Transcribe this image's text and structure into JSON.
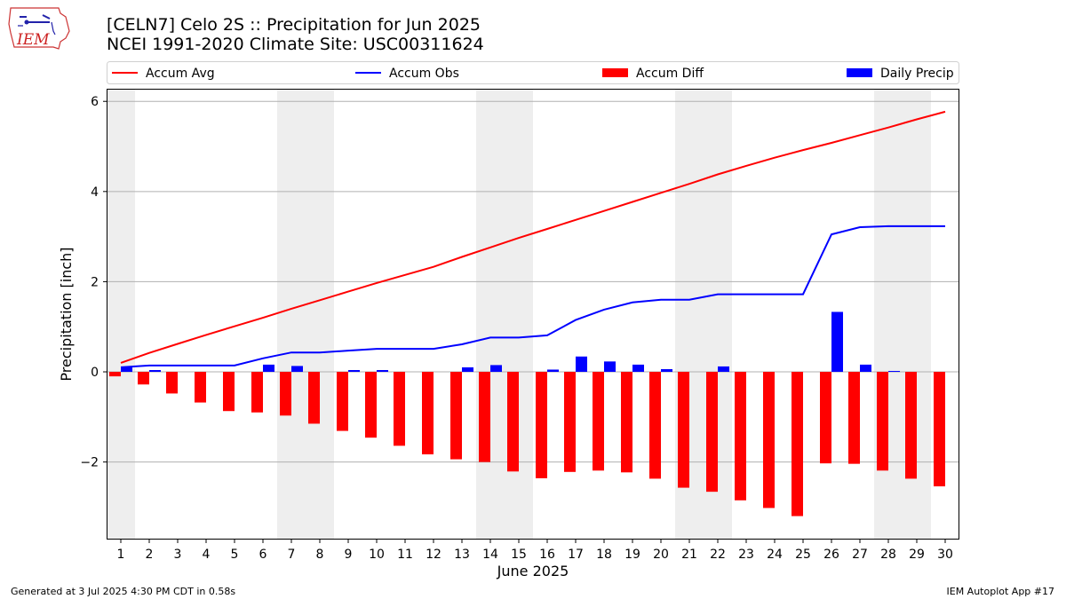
{
  "header": {
    "title_line1": "[CELN7] Celo 2S :: Precipitation for Jun 2025",
    "title_line2": "NCEI 1991-2020 Climate Site: USC00311624"
  },
  "logo": {
    "text": "IEM",
    "icon": "iem-logo-icon"
  },
  "footer": {
    "left": "Generated at 3 Jul 2025 4:30 PM CDT in 0.58s",
    "right": "IEM Autoplot App #17"
  },
  "colors": {
    "accum_avg": "#ff0000",
    "accum_obs": "#0000ff",
    "accum_diff": "#ff0000",
    "daily_precip": "#0000ff",
    "weekend_shade": "#eeeeee",
    "grid": "#b0b0b0"
  },
  "chart_data": {
    "type": "bar",
    "xlabel": "June 2025",
    "ylabel": "Precipitation [inch]",
    "x": [
      1,
      2,
      3,
      4,
      5,
      6,
      7,
      8,
      9,
      10,
      11,
      12,
      13,
      14,
      15,
      16,
      17,
      18,
      19,
      20,
      21,
      22,
      23,
      24,
      25,
      26,
      27,
      28,
      29,
      30
    ],
    "x_ticks": [
      "1",
      "2",
      "3",
      "4",
      "5",
      "6",
      "7",
      "8",
      "9",
      "10",
      "11",
      "12",
      "13",
      "14",
      "15",
      "16",
      "17",
      "18",
      "19",
      "20",
      "21",
      "22",
      "23",
      "24",
      "25",
      "26",
      "27",
      "28",
      "29",
      "30"
    ],
    "ylim": [
      -3.72,
      6.28
    ],
    "y_ticks": [
      6,
      4,
      2,
      0,
      -2
    ],
    "y_tick_labels": [
      "6",
      "4",
      "2",
      "0",
      "−2"
    ],
    "grid": "horizontal",
    "legend": {
      "placement": "top",
      "entries": [
        {
          "label": "Accum Avg",
          "kind": "line",
          "color": "#ff0000"
        },
        {
          "label": "Accum Obs",
          "kind": "line",
          "color": "#0000ff"
        },
        {
          "label": "Accum Diff",
          "kind": "bar",
          "color": "#ff0000"
        },
        {
          "label": "Daily Precip",
          "kind": "bar",
          "color": "#0000ff"
        }
      ]
    },
    "shaded_days": [
      [
        1,
        1
      ],
      [
        7,
        8
      ],
      [
        14,
        15
      ],
      [
        21,
        22
      ],
      [
        28,
        29
      ]
    ],
    "series": [
      {
        "name": "Accum Avg",
        "type": "line",
        "values": [
          0.2,
          0.42,
          0.62,
          0.82,
          1.01,
          1.2,
          1.4,
          1.59,
          1.78,
          1.97,
          2.15,
          2.33,
          2.55,
          2.76,
          2.97,
          3.17,
          3.37,
          3.57,
          3.77,
          3.97,
          4.17,
          4.38,
          4.57,
          4.75,
          4.92,
          5.08,
          5.25,
          5.42,
          5.6,
          5.77
        ]
      },
      {
        "name": "Accum Obs",
        "type": "line",
        "values": [
          0.1,
          0.14,
          0.14,
          0.14,
          0.14,
          0.3,
          0.43,
          0.43,
          0.47,
          0.51,
          0.51,
          0.51,
          0.61,
          0.76,
          0.76,
          0.81,
          1.15,
          1.38,
          1.54,
          1.6,
          1.6,
          1.72,
          1.72,
          1.72,
          1.72,
          3.05,
          3.21,
          3.23,
          3.23,
          3.23
        ]
      },
      {
        "name": "Accum Diff",
        "type": "bar",
        "values": [
          -0.1,
          -0.28,
          -0.48,
          -0.68,
          -0.87,
          -0.9,
          -0.97,
          -1.15,
          -1.31,
          -1.46,
          -1.64,
          -1.83,
          -1.94,
          -2.0,
          -2.21,
          -2.36,
          -2.22,
          -2.19,
          -2.23,
          -2.37,
          -2.57,
          -2.66,
          -2.85,
          -3.02,
          -3.2,
          -2.03,
          -2.04,
          -2.19,
          -2.37,
          -2.54
        ]
      },
      {
        "name": "Daily Precip",
        "type": "bar",
        "values": [
          0.1,
          0.04,
          0.0,
          0.0,
          0.0,
          0.16,
          0.13,
          0.0,
          0.04,
          0.04,
          0.0,
          0.0,
          0.1,
          0.15,
          0.0,
          0.05,
          0.34,
          0.23,
          0.16,
          0.06,
          0.0,
          0.12,
          0.0,
          0.0,
          0.0,
          1.33,
          0.16,
          0.02,
          0.0,
          0.0
        ]
      }
    ]
  }
}
